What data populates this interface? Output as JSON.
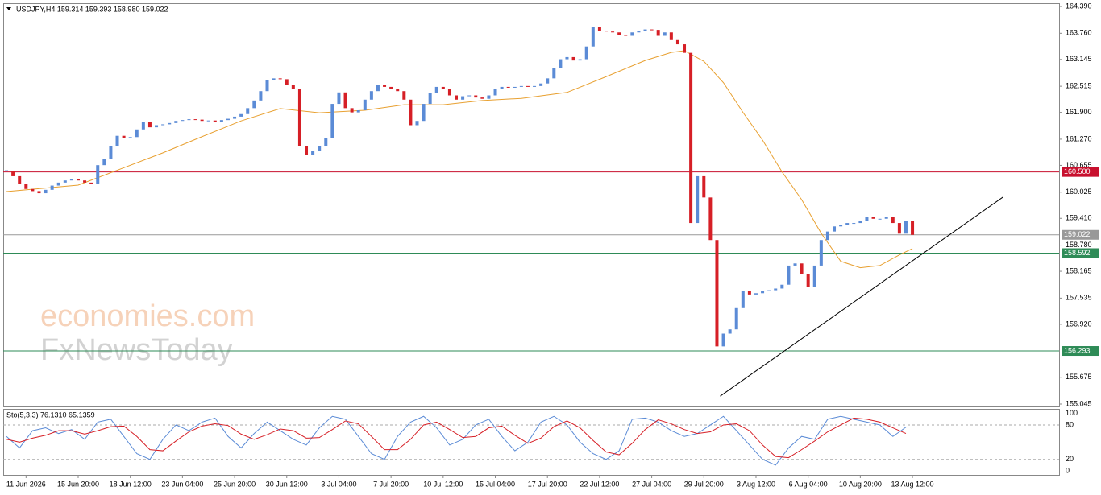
{
  "chart_data": [
    {
      "type": "candlestick",
      "header": "USDJPY,H4  159.314 159.393 158.980 159.022",
      "watermark": [
        "economies.com",
        "FxNewsToday"
      ],
      "up_color": "#5b8bd6",
      "down_color": "#d61f26",
      "xlim": [
        -0.5,
        161.5
      ],
      "ylim": [
        154.988,
        164.466
      ],
      "close": [
        160.53,
        160.4,
        160.22,
        160.1,
        160.05,
        160.0,
        160.08,
        160.18,
        160.25,
        160.3,
        160.33,
        160.3,
        160.25,
        160.22,
        160.66,
        160.8,
        161.1,
        161.35,
        161.3,
        161.32,
        161.5,
        161.68,
        161.55,
        161.6,
        161.62,
        161.65,
        161.7,
        161.72,
        161.74,
        161.73,
        161.7,
        161.71,
        161.68,
        161.72,
        161.75,
        161.8,
        161.86,
        162.0,
        162.18,
        162.4,
        162.65,
        162.7,
        162.68,
        162.55,
        162.45,
        161.1,
        160.9,
        161.0,
        161.1,
        161.3,
        162.1,
        162.37,
        162.0,
        161.9,
        161.95,
        162.2,
        162.4,
        162.55,
        162.5,
        162.45,
        162.4,
        162.2,
        161.6,
        161.7,
        162.1,
        162.35,
        162.5,
        162.45,
        162.3,
        162.2,
        162.28,
        162.3,
        162.25,
        162.22,
        162.3,
        162.45,
        162.5,
        162.48,
        162.5,
        162.52,
        162.5,
        162.52,
        162.58,
        162.7,
        162.95,
        163.15,
        163.2,
        163.12,
        163.15,
        163.45,
        163.9,
        163.82,
        163.8,
        163.78,
        163.72,
        163.7,
        163.78,
        163.82,
        163.85,
        163.84,
        163.7,
        163.78,
        163.6,
        163.5,
        163.3,
        159.3,
        160.4,
        159.9,
        158.9,
        156.4,
        156.7,
        156.8,
        157.3,
        157.7,
        157.62,
        157.65,
        157.7,
        157.72,
        157.76,
        157.85,
        158.3,
        158.35,
        158.1,
        157.8,
        158.3,
        158.9,
        159.1,
        159.22,
        159.25,
        159.3,
        159.3,
        159.35,
        159.45,
        159.4,
        159.4,
        159.45,
        159.3,
        159.05,
        159.35,
        159.022
      ],
      "moving_average": {
        "color": "#e8a030",
        "x": [
          0,
          11,
          17.5,
          24,
          30,
          36,
          42,
          48,
          55,
          61,
          67,
          73,
          79,
          86,
          92,
          98,
          102,
          104,
          107,
          110,
          113,
          116,
          119,
          122,
          125,
          128,
          131,
          134,
          137,
          139
        ],
        "values": [
          160.04,
          160.19,
          160.57,
          160.95,
          161.33,
          161.7,
          161.99,
          161.89,
          161.95,
          162.08,
          162.08,
          162.18,
          162.23,
          162.37,
          162.74,
          163.12,
          163.31,
          163.35,
          163.1,
          162.6,
          161.9,
          161.25,
          160.5,
          159.85,
          159.06,
          158.4,
          158.25,
          158.3,
          158.55,
          158.7
        ]
      },
      "levels": [
        {
          "value": 160.5,
          "label": "160.500",
          "color": "#c8102e"
        },
        {
          "value": 159.022,
          "label": "159.022",
          "color": "#999999"
        },
        {
          "value": 158.592,
          "label": "158.592",
          "color": "#2e8b57"
        },
        {
          "value": 156.293,
          "label": "156.293",
          "color": "#2e8b57"
        }
      ],
      "trendline": {
        "x": [
          109.5,
          152.9
        ],
        "y": [
          155.23,
          159.91
        ],
        "color": "#000000"
      },
      "yticks": [
        {
          "value": 164.39,
          "label": "164.390"
        },
        {
          "value": 163.76,
          "label": "163.760"
        },
        {
          "value": 163.145,
          "label": "163.145"
        },
        {
          "value": 162.515,
          "label": "162.515"
        },
        {
          "value": 161.9,
          "label": "161.900"
        },
        {
          "value": 161.27,
          "label": "161.270"
        },
        {
          "value": 160.655,
          "label": "160.655"
        },
        {
          "value": 160.025,
          "label": "160.025"
        },
        {
          "value": 159.41,
          "label": "159.410"
        },
        {
          "value": 158.78,
          "label": "158.780"
        },
        {
          "value": 158.165,
          "label": "158.165"
        },
        {
          "value": 157.535,
          "label": "157.535"
        },
        {
          "value": 156.92,
          "label": "156.920"
        },
        {
          "value": 155.675,
          "label": "155.675"
        },
        {
          "value": 155.045,
          "label": "155.045"
        }
      ],
      "xticks": [
        {
          "value": 3,
          "label": "11 Jun 2026"
        },
        {
          "value": 11,
          "label": "15 Jun 20:00"
        },
        {
          "value": 19,
          "label": "18 Jun 12:00"
        },
        {
          "value": 27,
          "label": "23 Jun 04:00"
        },
        {
          "value": 35,
          "label": "25 Jun 20:00"
        },
        {
          "value": 43,
          "label": "30 Jun 12:00"
        },
        {
          "value": 51,
          "label": "3 Jul 04:00"
        },
        {
          "value": 59,
          "label": "7 Jul 20:00"
        },
        {
          "value": 67,
          "label": "10 Jul 12:00"
        },
        {
          "value": 75,
          "label": "15 Jul 04:00"
        },
        {
          "value": 83,
          "label": "17 Jul 20:00"
        },
        {
          "value": 91,
          "label": "22 Jul 12:00"
        },
        {
          "value": 99,
          "label": "27 Jul 04:00"
        },
        {
          "value": 107,
          "label": "29 Jul 20:00"
        },
        {
          "value": 115,
          "label": "3 Aug 12:00"
        },
        {
          "value": 123,
          "label": "6 Aug 04:00"
        },
        {
          "value": 131,
          "label": "10 Aug 20:00"
        },
        {
          "value": 139,
          "label": "13 Aug 12:00"
        }
      ]
    },
    {
      "type": "line",
      "title": "Sto(5,3,3) 76.1310 65.1359",
      "xlim": [
        -0.5,
        161.5
      ],
      "ylim": [
        -7,
        108
      ],
      "yticks": [
        0,
        20,
        80,
        100
      ],
      "dashed_levels": [
        20,
        80
      ],
      "x": [
        0,
        2,
        4,
        6,
        8,
        10,
        12,
        14,
        16,
        18,
        20,
        22,
        24,
        26,
        28,
        30,
        32,
        34,
        36,
        38,
        40,
        42,
        44,
        46,
        48,
        50,
        52,
        54,
        56,
        58,
        60,
        62,
        64,
        66,
        68,
        70,
        72,
        74,
        76,
        78,
        80,
        82,
        84,
        86,
        88,
        90,
        92,
        94,
        96,
        98,
        100,
        102,
        104,
        106,
        108,
        110,
        112,
        114,
        116,
        118,
        120,
        122,
        124,
        126,
        128,
        130,
        132,
        134,
        136,
        138
      ],
      "series": [
        {
          "color": "#5b8bd6",
          "values": [
            60,
            40,
            70,
            75,
            65,
            72,
            55,
            85,
            90,
            60,
            30,
            20,
            55,
            80,
            70,
            85,
            92,
            60,
            40,
            65,
            85,
            70,
            55,
            45,
            75,
            95,
            90,
            60,
            30,
            20,
            60,
            85,
            95,
            75,
            45,
            55,
            80,
            90,
            60,
            35,
            50,
            85,
            95,
            80,
            50,
            30,
            20,
            35,
            90,
            92,
            85,
            70,
            60,
            65,
            80,
            95,
            70,
            45,
            20,
            10,
            40,
            60,
            55,
            90,
            95,
            90,
            85,
            80,
            60,
            76.131
          ]
        },
        {
          "color": "#d61f26",
          "values": [
            55,
            50,
            57,
            62,
            70,
            70,
            64,
            70,
            77,
            78,
            60,
            37,
            35,
            52,
            68,
            78,
            82,
            79,
            64,
            55,
            63,
            73,
            70,
            57,
            58,
            72,
            87,
            82,
            60,
            37,
            37,
            55,
            80,
            85,
            72,
            58,
            60,
            75,
            78,
            62,
            48,
            57,
            77,
            87,
            75,
            53,
            33,
            28,
            48,
            72,
            89,
            82,
            72,
            65,
            68,
            80,
            82,
            70,
            45,
            25,
            23,
            37,
            52,
            68,
            80,
            92,
            90,
            85,
            75,
            65.1359
          ]
        }
      ]
    }
  ]
}
